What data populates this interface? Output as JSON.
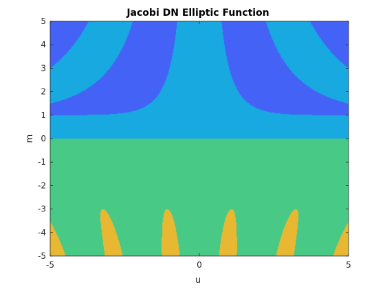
{
  "chart_data": {
    "type": "contour",
    "title": "Jacobi DN Elliptic Function",
    "xlabel": "u",
    "ylabel": "m",
    "xlim": [
      -5,
      5
    ],
    "ylim": [
      -5,
      5
    ],
    "x_ticks": [
      -5,
      0,
      5
    ],
    "x_tick_labels": [
      "-5",
      "0",
      "5"
    ],
    "y_ticks": [
      -5,
      -4,
      -3,
      -2,
      -1,
      0,
      1,
      2,
      3,
      4,
      5
    ],
    "y_tick_labels": [
      "-5",
      "-4",
      "-3",
      "-2",
      "-1",
      "0",
      "1",
      "2",
      "3",
      "4",
      "5"
    ],
    "grid": false,
    "function": "dn(u | m)",
    "contour_levels": [
      -1,
      0,
      1,
      2,
      3
    ],
    "level_colors": [
      "#3e26a8",
      "#4462f5",
      "#18a9e0",
      "#48c985",
      "#e9b832",
      "#f9fa14"
    ]
  }
}
